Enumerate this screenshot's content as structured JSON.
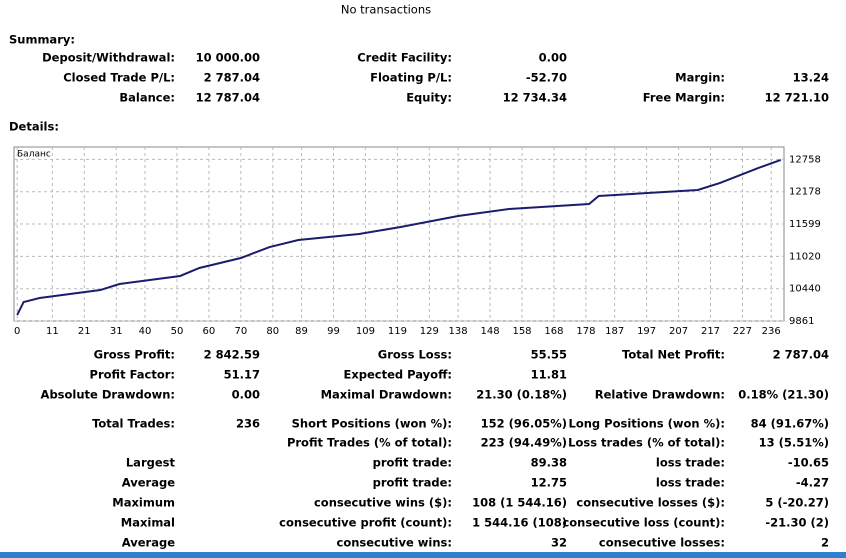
{
  "title": "No transactions",
  "summary": {
    "heading": "Summary:",
    "rows": [
      [
        "Deposit/Withdrawal:",
        "10 000.00",
        "Credit Facility:",
        "0.00",
        null,
        null
      ],
      [
        "Closed Trade P/L:",
        "2 787.04",
        "Floating P/L:",
        "-52.70",
        "Margin:",
        "13.24"
      ],
      [
        "Balance:",
        "12 787.04",
        "Equity:",
        "12 734.34",
        "Free Margin:",
        "12 721.10"
      ]
    ]
  },
  "details": {
    "heading": "Details:"
  },
  "chart_data": {
    "type": "line",
    "legend": "Баланс",
    "color": "#1c1c6e",
    "grid": true,
    "x": [
      0,
      2,
      7,
      26,
      32,
      51,
      57,
      70,
      79,
      88,
      107,
      120,
      138,
      154,
      179,
      182,
      213,
      220,
      232,
      239
    ],
    "values": [
      9969,
      10200,
      10273,
      10416,
      10524,
      10668,
      10811,
      10990,
      11187,
      11313,
      11420,
      11546,
      11743,
      11869,
      11958,
      12102,
      12209,
      12335,
      12604,
      12748
    ],
    "xlim": [
      -1,
      240
    ],
    "xticks": [
      0,
      11,
      21,
      31,
      40,
      50,
      60,
      70,
      80,
      89,
      99,
      109,
      119,
      129,
      138,
      148,
      158,
      168,
      178,
      187,
      197,
      207,
      217,
      227,
      236
    ],
    "ylim": [
      9861,
      12980
    ],
    "yticks": [
      9861,
      10440,
      11020,
      11599,
      12178,
      12758
    ]
  },
  "stats": {
    "rows": [
      [
        "Gross Profit:",
        "2 842.59",
        "Gross Loss:",
        "55.55",
        "Total Net Profit:",
        "2 787.04"
      ],
      [
        "Profit Factor:",
        "51.17",
        "Expected Payoff:",
        "11.81",
        null,
        null
      ],
      [
        "Absolute Drawdown:",
        "0.00",
        "Maximal Drawdown:",
        "21.30 (0.18%)",
        "Relative Drawdown:",
        "0.18% (21.30)"
      ],
      [
        "Total Trades:",
        "236",
        "Short Positions (won %):",
        "152 (96.05%)",
        "Long Positions (won %):",
        "84 (91.67%)"
      ],
      [
        null,
        null,
        "Profit Trades (% of total):",
        "223 (94.49%)",
        "Loss trades (% of total):",
        "13 (5.51%)"
      ],
      [
        "Largest",
        null,
        "profit trade:",
        "89.38",
        "loss trade:",
        "-10.65"
      ],
      [
        "Average",
        null,
        "profit trade:",
        "12.75",
        "loss trade:",
        "-4.27"
      ],
      [
        "Maximum",
        null,
        "consecutive wins ($):",
        "108 (1 544.16)",
        "consecutive losses ($):",
        "5 (-20.27)"
      ],
      [
        "Maximal",
        null,
        "consecutive profit (count):",
        "1 544.16 (108)",
        "consecutive loss (count):",
        "-21.30 (2)"
      ],
      [
        "Average",
        null,
        "consecutive wins:",
        "32",
        "consecutive losses:",
        "2"
      ]
    ]
  }
}
